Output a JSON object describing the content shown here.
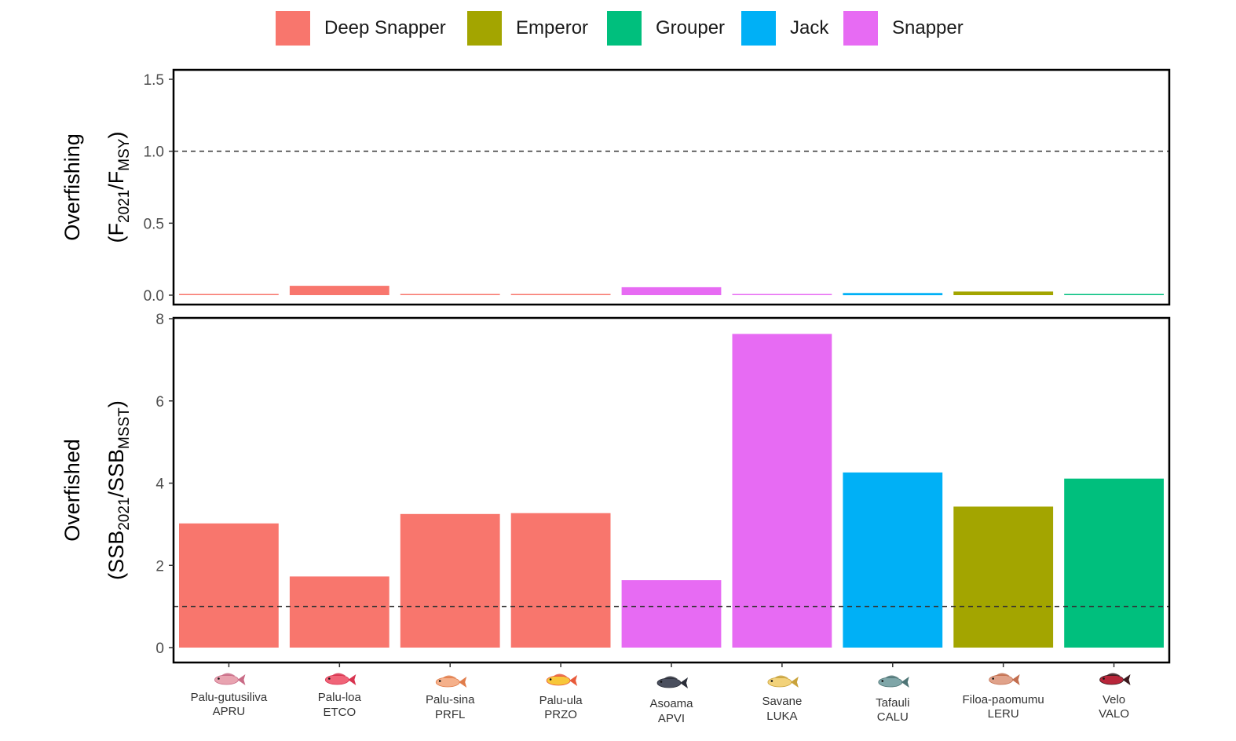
{
  "legend": {
    "items": [
      {
        "label": "Deep Snapper",
        "color": "#F8766D"
      },
      {
        "label": "Emperor",
        "color": "#A3A500"
      },
      {
        "label": "Grouper",
        "color": "#00BF7D"
      },
      {
        "label": "Jack",
        "color": "#00B0F6"
      },
      {
        "label": "Snapper",
        "color": "#E76BF3"
      }
    ]
  },
  "chart_data": [
    {
      "type": "bar",
      "ylabel": {
        "line1": "Overfishing",
        "line2_prefix": "(F",
        "line2_sub1": "2021",
        "line2_mid": "/F",
        "line2_sub2": "MSY",
        "line2_suffix": ")"
      },
      "ylim": [
        0,
        1.5
      ],
      "yticks": [
        "0.0",
        "0.5",
        "1.0",
        "1.5"
      ],
      "reference_line": 1.0,
      "grid": false,
      "values": [
        0.005,
        0.065,
        0.005,
        0.005,
        0.055,
        0.005,
        0.015,
        0.025,
        0.008
      ]
    },
    {
      "type": "bar",
      "ylabel": {
        "line1": "Overfished",
        "line2_prefix": "(SSB",
        "line2_sub1": "2021",
        "line2_mid": "/SSB",
        "line2_sub2": "MSST",
        "line2_suffix": ")"
      },
      "ylim": [
        0,
        8
      ],
      "yticks": [
        "0",
        "2",
        "4",
        "6",
        "8"
      ],
      "reference_line": 1.0,
      "grid": false,
      "values": [
        3.02,
        1.73,
        3.25,
        3.27,
        1.64,
        7.63,
        4.26,
        3.43,
        4.11
      ]
    }
  ],
  "categories": [
    {
      "name": "Palu-gutusiliva",
      "code": "APRU",
      "group": "Deep Snapper"
    },
    {
      "name": "Palu-loa",
      "code": "ETCO",
      "group": "Deep Snapper"
    },
    {
      "name": "Palu-sina",
      "code": "PRFL",
      "group": "Deep Snapper"
    },
    {
      "name": "Palu-ula",
      "code": "PRZO",
      "group": "Deep Snapper"
    },
    {
      "name": "Asoama",
      "code": "APVI",
      "group": "Snapper"
    },
    {
      "name": "Savane",
      "code": "LUKA",
      "group": "Snapper"
    },
    {
      "name": "Tafauli",
      "code": "CALU",
      "group": "Jack"
    },
    {
      "name": "Filoa-paomumu",
      "code": "LERU",
      "group": "Emperor"
    },
    {
      "name": "Velo",
      "code": "VALO",
      "group": "Grouper"
    }
  ],
  "fish_icons": [
    {
      "icon": "pink-snapper-fish-icon",
      "body": "#e8a3b0",
      "accent": "#c96b86"
    },
    {
      "icon": "red-snapper-fish-icon",
      "body": "#f06478",
      "accent": "#d8334f"
    },
    {
      "icon": "orange-snapper-fish-icon",
      "body": "#f5b08a",
      "accent": "#e07c4a"
    },
    {
      "icon": "yellow-snapper-fish-icon",
      "body": "#f7c73a",
      "accent": "#e85a3a"
    },
    {
      "icon": "dark-jobfish-icon",
      "body": "#4a4f5e",
      "accent": "#2a2e38"
    },
    {
      "icon": "yellow-striped-snapper-icon",
      "body": "#f2d27a",
      "accent": "#c9a23a"
    },
    {
      "icon": "jack-fish-icon",
      "body": "#7fa6a8",
      "accent": "#4d7475"
    },
    {
      "icon": "emperor-fish-icon",
      "body": "#e0a28a",
      "accent": "#c26d4e"
    },
    {
      "icon": "red-grouper-fish-icon",
      "body": "#b8263a",
      "accent": "#3a1a1e"
    }
  ]
}
